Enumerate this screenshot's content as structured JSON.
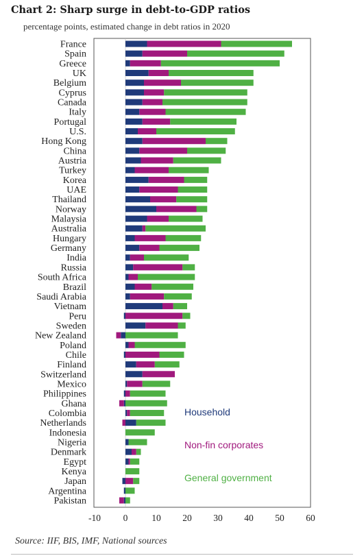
{
  "chart_data": {
    "type": "bar",
    "orientation": "horizontal",
    "stacked": true,
    "title": "Chart 2: Sharp surge in debt-to-GDP ratios",
    "subtitle": "percentage points, estimated change in debt ratios in 2020",
    "source": "Source: IIF, BIS, IMF, National sources",
    "xlim": [
      -10,
      60
    ],
    "x_ticks": [
      -10,
      0,
      10,
      20,
      30,
      40,
      50,
      60
    ],
    "legend_position": "inside-right",
    "grid": false,
    "categories": [
      "France",
      "Spain",
      "Greece",
      "UK",
      "Belgium",
      "Cyprus",
      "Canada",
      "Italy",
      "Portugal",
      "U.S.",
      "Hong Kong",
      "China",
      "Austria",
      "Turkey",
      "Korea",
      "UAE",
      "Thailand",
      "Norway",
      "Malaysia",
      "Australia",
      "Hungary",
      "Germany",
      "India",
      "Russia",
      "South Africa",
      "Brazil",
      "Saudi Arabia",
      "Vietnam",
      "Peru",
      "Sweden",
      "New Zealand",
      "Poland",
      "Chile",
      "Finland",
      "Switzerland",
      "Mexico",
      "Philippines",
      "Ghana",
      "Colombia",
      "Netherlands",
      "Indonesia",
      "Nigeria",
      "Denmark",
      "Egypt",
      "Kenya",
      "Japan",
      "Argentina",
      "Pakistan"
    ],
    "series": [
      {
        "name": "Household",
        "color": "#1f3a7a",
        "values": [
          7,
          5.5,
          1.5,
          7.5,
          6,
          6,
          5.5,
          4.5,
          5.5,
          4,
          5.5,
          4.5,
          5,
          3,
          7.5,
          4.5,
          8,
          10,
          7,
          5.5,
          3,
          4.5,
          1.5,
          2.5,
          1,
          3,
          1.5,
          12,
          -0.5,
          6.5,
          -1.5,
          1,
          -0.5,
          3.5,
          5.5,
          0.5,
          -0.5,
          -0.5,
          0.5,
          3.5,
          0,
          1,
          2,
          1,
          0,
          -1,
          -0.5,
          -0.5
        ]
      },
      {
        "name": "Non-fin corporates",
        "color": "#a0197d",
        "values": [
          24,
          14.5,
          10,
          6.5,
          12,
          6.5,
          6.5,
          8.5,
          9,
          6,
          20.5,
          15.5,
          10.5,
          11,
          11.5,
          12.5,
          8.5,
          13,
          7,
          1,
          10,
          6.5,
          4.5,
          16,
          3,
          5.5,
          11,
          3.5,
          18.5,
          10.5,
          -1.5,
          2,
          11,
          6,
          10.5,
          5,
          1.5,
          -1.5,
          1,
          -1,
          0,
          0,
          1.5,
          0.5,
          0,
          2.5,
          0,
          -1.5
        ]
      },
      {
        "name": "General government",
        "color": "#4fb044",
        "values": [
          23,
          31.5,
          38.5,
          27.5,
          23.5,
          27,
          27.5,
          26,
          21.5,
          25.5,
          7,
          12.5,
          15.5,
          13,
          7.5,
          9.5,
          10,
          3.5,
          11,
          19.5,
          11.5,
          13,
          14.5,
          4,
          18.5,
          13.5,
          9,
          4.5,
          2.5,
          2.5,
          17,
          16.5,
          8,
          8,
          0,
          9,
          11.5,
          13.5,
          11,
          9.5,
          9.5,
          6,
          1.5,
          3,
          4.5,
          2,
          3,
          1.5
        ]
      }
    ]
  }
}
